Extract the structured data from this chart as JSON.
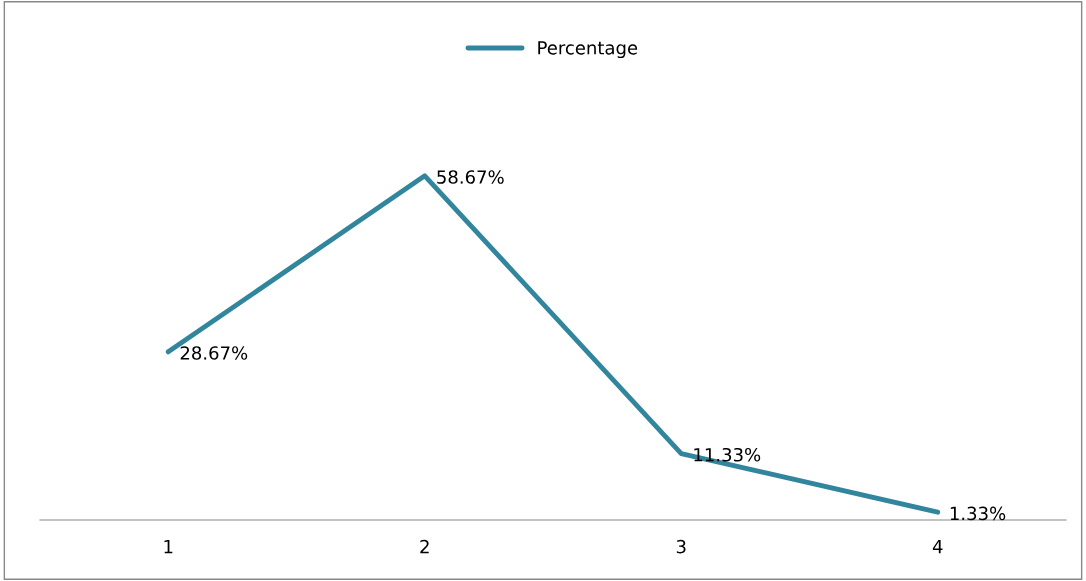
{
  "chart_data": {
    "type": "line",
    "categories": [
      "1",
      "2",
      "3",
      "4"
    ],
    "series": [
      {
        "name": "Percentage",
        "color": "#31859c",
        "values": [
          28.67,
          58.67,
          11.33,
          1.33
        ],
        "value_labels": [
          "28.67%",
          "58.67%",
          "11.33%",
          "1.33%"
        ]
      }
    ],
    "legend": "top",
    "grid": false,
    "marker": "none",
    "line_style": "solid"
  }
}
